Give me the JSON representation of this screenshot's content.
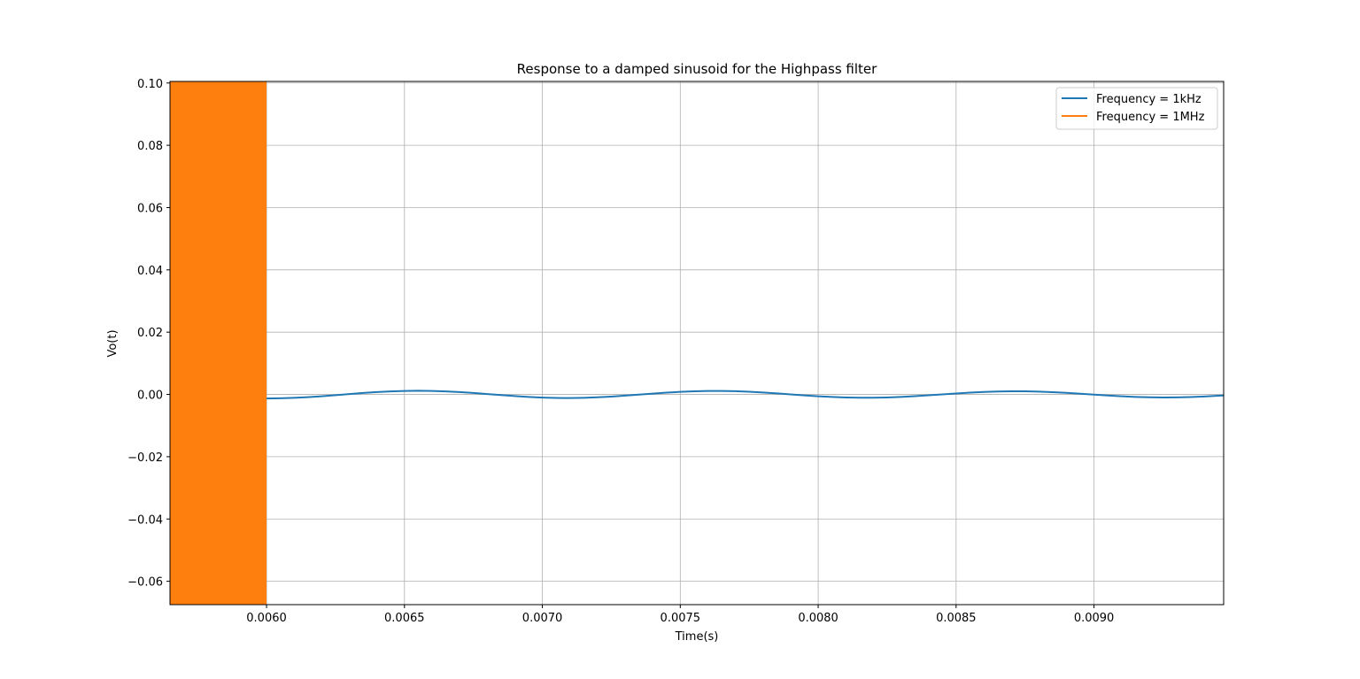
{
  "chart_data": {
    "type": "line",
    "title": "Response to a damped sinusoid for the Highpass filter",
    "xlabel": "Time(s)",
    "ylabel": "Vo(t)",
    "xlim": [
      0.00565,
      0.00947
    ],
    "ylim": [
      -0.0675,
      0.1005
    ],
    "grid": true,
    "legend_position": "top-right",
    "x_ticks": [
      0.006,
      0.0065,
      0.007,
      0.0075,
      0.008,
      0.0085,
      0.009
    ],
    "x_tick_labels": [
      "0.0060",
      "0.0065",
      "0.0070",
      "0.0075",
      "0.0080",
      "0.0085",
      "0.0090"
    ],
    "y_ticks": [
      0.1,
      0.08,
      0.06,
      0.04,
      0.02,
      0.0,
      -0.02,
      -0.04,
      -0.06
    ],
    "y_tick_labels": [
      "0.10",
      "0.08",
      "0.06",
      "0.04",
      "0.02",
      "0.00",
      "−0.02",
      "−0.04",
      "−0.06"
    ],
    "series": [
      {
        "name": "Frequency = 1kHz",
        "color": "#1f77b4",
        "x": [
          0.006,
          0.00605,
          0.0061,
          0.00615,
          0.0062,
          0.00625,
          0.0063,
          0.00635,
          0.0064,
          0.00645,
          0.0065,
          0.00655,
          0.0066,
          0.00665,
          0.0067,
          0.00675,
          0.0068,
          0.00685,
          0.0069,
          0.00695,
          0.007,
          0.00705,
          0.0071,
          0.00715,
          0.0072,
          0.00725,
          0.0073,
          0.00735,
          0.0074,
          0.00745,
          0.0075,
          0.00755,
          0.0076,
          0.00765,
          0.0077,
          0.00775,
          0.0078,
          0.00785,
          0.0079,
          0.00795,
          0.008,
          0.00805,
          0.0081,
          0.00815,
          0.0082,
          0.00825,
          0.0083,
          0.00835,
          0.0084,
          0.00845,
          0.0085,
          0.00855,
          0.0086,
          0.00865,
          0.0087,
          0.00875,
          0.0088,
          0.00885,
          0.0089,
          0.00895,
          0.009,
          0.00905,
          0.0091,
          0.00915,
          0.0092,
          0.00925,
          0.0093,
          0.00935,
          0.0094,
          0.00945,
          0.00947
        ],
        "y": [
          -0.00129,
          -0.00124,
          -0.0011,
          -0.00087,
          -0.00058,
          -0.00024,
          0.00012,
          0.00046,
          0.00075,
          0.00098,
          0.00112,
          0.00117,
          0.00111,
          0.00097,
          0.00075,
          0.00046,
          0.00013,
          -0.0002,
          -0.00052,
          -0.0008,
          -0.00101,
          -0.00113,
          -0.00116,
          -0.00108,
          -0.00092,
          -0.00068,
          -0.00038,
          -5e-05,
          0.00027,
          0.00057,
          0.00082,
          0.001,
          0.0011,
          0.00111,
          0.00103,
          0.00086,
          0.00062,
          0.00033,
          2e-05,
          -0.0003,
          -0.00058,
          -0.00081,
          -0.00098,
          -0.00106,
          -0.00106,
          -0.00097,
          -0.0008,
          -0.00057,
          -0.00029,
          1e-05,
          0.00031,
          0.00058,
          0.0008,
          0.00095,
          0.00102,
          0.001,
          0.00091,
          0.00074,
          0.00051,
          0.00024,
          -5e-05,
          -0.00034,
          -0.00059,
          -0.00079,
          -0.00092,
          -0.00097,
          -0.00094,
          -0.00083,
          -0.00065,
          -0.00042,
          -0.00033
        ]
      },
      {
        "name": "Frequency = 1MHz",
        "color": "#ff7f0e",
        "x": [
          0.00565,
          0.006
        ],
        "y_min": -0.0675,
        "y_max": 0.1005
      }
    ]
  }
}
